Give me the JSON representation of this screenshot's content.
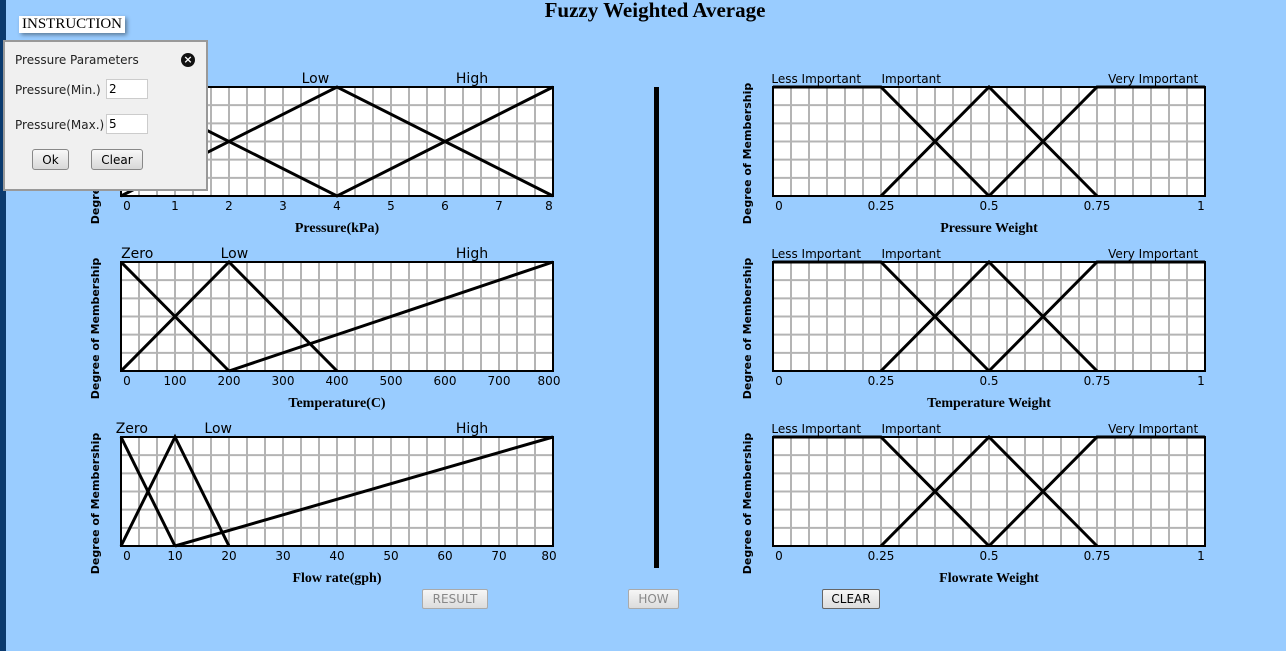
{
  "title": "Fuzzy Weighted Average",
  "instruction_label": "INSTRUCTION",
  "dialog": {
    "title": "Pressure Parameters",
    "min_label": "Pressure(Min.)",
    "min_value": "2",
    "max_label": "Pressure(Max.)",
    "max_value": "5",
    "ok_label": "Ok",
    "clear_label": "Clear"
  },
  "buttons": {
    "result": "RESULT",
    "how": "HOW",
    "clear": "CLEAR"
  },
  "chart_data": [
    {
      "type": "line",
      "xlabel": "Pressure(kPa)",
      "ylabel": "Degree of Membership",
      "xlim": [
        0,
        8
      ],
      "ylim": [
        0,
        1
      ],
      "ticks": [
        "0",
        "1",
        "2",
        "3",
        "4",
        "5",
        "6",
        "7",
        "8"
      ],
      "tick_values": [
        0,
        1,
        2,
        3,
        4,
        5,
        6,
        7,
        8
      ],
      "series": [
        {
          "name": "Low",
          "label_at": 3.6,
          "points": [
            [
              0,
              0
            ],
            [
              4,
              1
            ],
            [
              8,
              0
            ]
          ]
        },
        {
          "name": "High",
          "label_at": 6.5,
          "points": [
            [
              0,
              1
            ],
            [
              4,
              0
            ],
            [
              8,
              1
            ]
          ]
        }
      ]
    },
    {
      "type": "line",
      "xlabel": "Temperature(C)",
      "ylabel": "Degree of Membership",
      "xlim": [
        0,
        800
      ],
      "ylim": [
        0,
        1
      ],
      "ticks": [
        "0",
        "100",
        "200",
        "300",
        "400",
        "500",
        "600",
        "700",
        "800"
      ],
      "tick_values": [
        0,
        100,
        200,
        300,
        400,
        500,
        600,
        700,
        800
      ],
      "series": [
        {
          "name": "Zero",
          "label_at": 30,
          "points": [
            [
              0,
              1
            ],
            [
              200,
              0
            ]
          ]
        },
        {
          "name": "Low",
          "label_at": 210,
          "points": [
            [
              0,
              0
            ],
            [
              200,
              1
            ],
            [
              400,
              0
            ]
          ]
        },
        {
          "name": "High",
          "label_at": 650,
          "points": [
            [
              200,
              0
            ],
            [
              800,
              1
            ]
          ]
        }
      ]
    },
    {
      "type": "line",
      "xlabel": "Flow rate(gph)",
      "ylabel": "Degree of Membership",
      "xlim": [
        0,
        80
      ],
      "ylim": [
        0,
        1
      ],
      "ticks": [
        "0",
        "10",
        "20",
        "30",
        "40",
        "50",
        "60",
        "70",
        "80"
      ],
      "tick_values": [
        0,
        10,
        20,
        30,
        40,
        50,
        60,
        70,
        80
      ],
      "series": [
        {
          "name": "Zero",
          "label_at": 2,
          "points": [
            [
              0,
              1
            ],
            [
              10,
              0
            ]
          ]
        },
        {
          "name": "Low",
          "label_at": 18,
          "points": [
            [
              0,
              0
            ],
            [
              10,
              1
            ],
            [
              20,
              0
            ]
          ]
        },
        {
          "name": "High",
          "label_at": 65,
          "points": [
            [
              10,
              0
            ],
            [
              80,
              1
            ]
          ]
        }
      ]
    },
    {
      "type": "line",
      "xlabel": "Pressure Weight",
      "ylabel": "Degree of Membership",
      "xlim": [
        0,
        1
      ],
      "ylim": [
        0,
        1
      ],
      "ticks": [
        "0",
        "0.25",
        "0.5",
        "0.75",
        "1"
      ],
      "tick_values": [
        0,
        0.25,
        0.5,
        0.75,
        1
      ],
      "series": [
        {
          "name": "Less Important",
          "label_at": 0.1,
          "points": [
            [
              0,
              1
            ],
            [
              0.25,
              1
            ],
            [
              0.5,
              0
            ]
          ]
        },
        {
          "name": "Important",
          "label_at": 0.32,
          "points": [
            [
              0.25,
              0
            ],
            [
              0.5,
              1
            ],
            [
              0.75,
              0
            ]
          ]
        },
        {
          "name": "Very Important",
          "label_at": 0.88,
          "points": [
            [
              0.5,
              0
            ],
            [
              0.75,
              1
            ],
            [
              1,
              1
            ]
          ]
        }
      ]
    },
    {
      "type": "line",
      "xlabel": "Temperature Weight",
      "ylabel": "Degree of Membership",
      "xlim": [
        0,
        1
      ],
      "ylim": [
        0,
        1
      ],
      "ticks": [
        "0",
        "0.25",
        "0.5",
        "0.75",
        "1"
      ],
      "tick_values": [
        0,
        0.25,
        0.5,
        0.75,
        1
      ],
      "series": [
        {
          "name": "Less Important",
          "label_at": 0.1,
          "points": [
            [
              0,
              1
            ],
            [
              0.25,
              1
            ],
            [
              0.5,
              0
            ]
          ]
        },
        {
          "name": "Important",
          "label_at": 0.32,
          "points": [
            [
              0.25,
              0
            ],
            [
              0.5,
              1
            ],
            [
              0.75,
              0
            ]
          ]
        },
        {
          "name": "Very Important",
          "label_at": 0.88,
          "points": [
            [
              0.5,
              0
            ],
            [
              0.75,
              1
            ],
            [
              1,
              1
            ]
          ]
        }
      ]
    },
    {
      "type": "line",
      "xlabel": "Flowrate Weight",
      "ylabel": "Degree of Membership",
      "xlim": [
        0,
        1
      ],
      "ylim": [
        0,
        1
      ],
      "ticks": [
        "0",
        "0.25",
        "0.5",
        "0.75",
        "1"
      ],
      "tick_values": [
        0,
        0.25,
        0.5,
        0.75,
        1
      ],
      "series": [
        {
          "name": "Less Important",
          "label_at": 0.1,
          "points": [
            [
              0,
              1
            ],
            [
              0.25,
              1
            ],
            [
              0.5,
              0
            ]
          ]
        },
        {
          "name": "Important",
          "label_at": 0.32,
          "points": [
            [
              0.25,
              0
            ],
            [
              0.5,
              1
            ],
            [
              0.75,
              0
            ]
          ]
        },
        {
          "name": "Very Important",
          "label_at": 0.88,
          "points": [
            [
              0.5,
              0
            ],
            [
              0.75,
              1
            ],
            [
              1,
              1
            ]
          ]
        }
      ]
    }
  ]
}
